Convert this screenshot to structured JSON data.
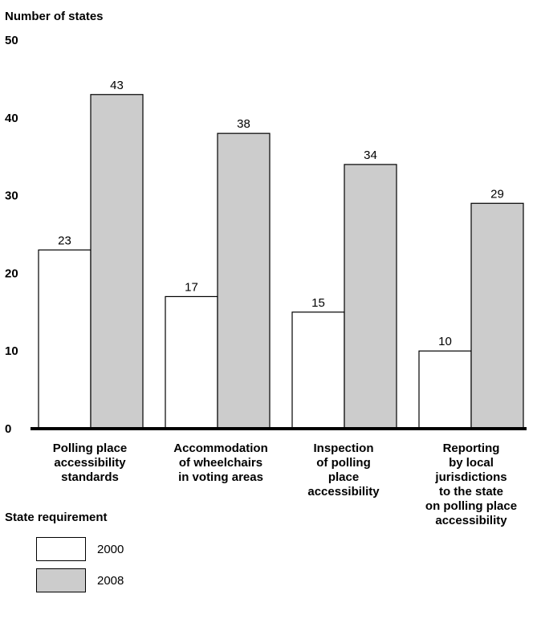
{
  "chart_data": {
    "type": "bar",
    "ylabel": "Number of states",
    "ylim": [
      0,
      50
    ],
    "yticks": [
      0,
      10,
      20,
      30,
      40,
      50
    ],
    "categories": [
      "Polling place\naccessibility\nstandards",
      "Accommodation\nof wheelchairs\nin voting areas",
      "Inspection\nof polling\nplace\naccessibility",
      "Reporting\nby local\njurisdictions\nto the state\non polling place\naccessibility"
    ],
    "series": [
      {
        "name": "2000",
        "values": [
          23,
          17,
          15,
          10
        ],
        "color": "#ffffff"
      },
      {
        "name": "2008",
        "values": [
          43,
          38,
          34,
          29
        ],
        "color": "#cccccc"
      }
    ],
    "legend_title": "State requirement",
    "legend_position": "bottom-left"
  }
}
